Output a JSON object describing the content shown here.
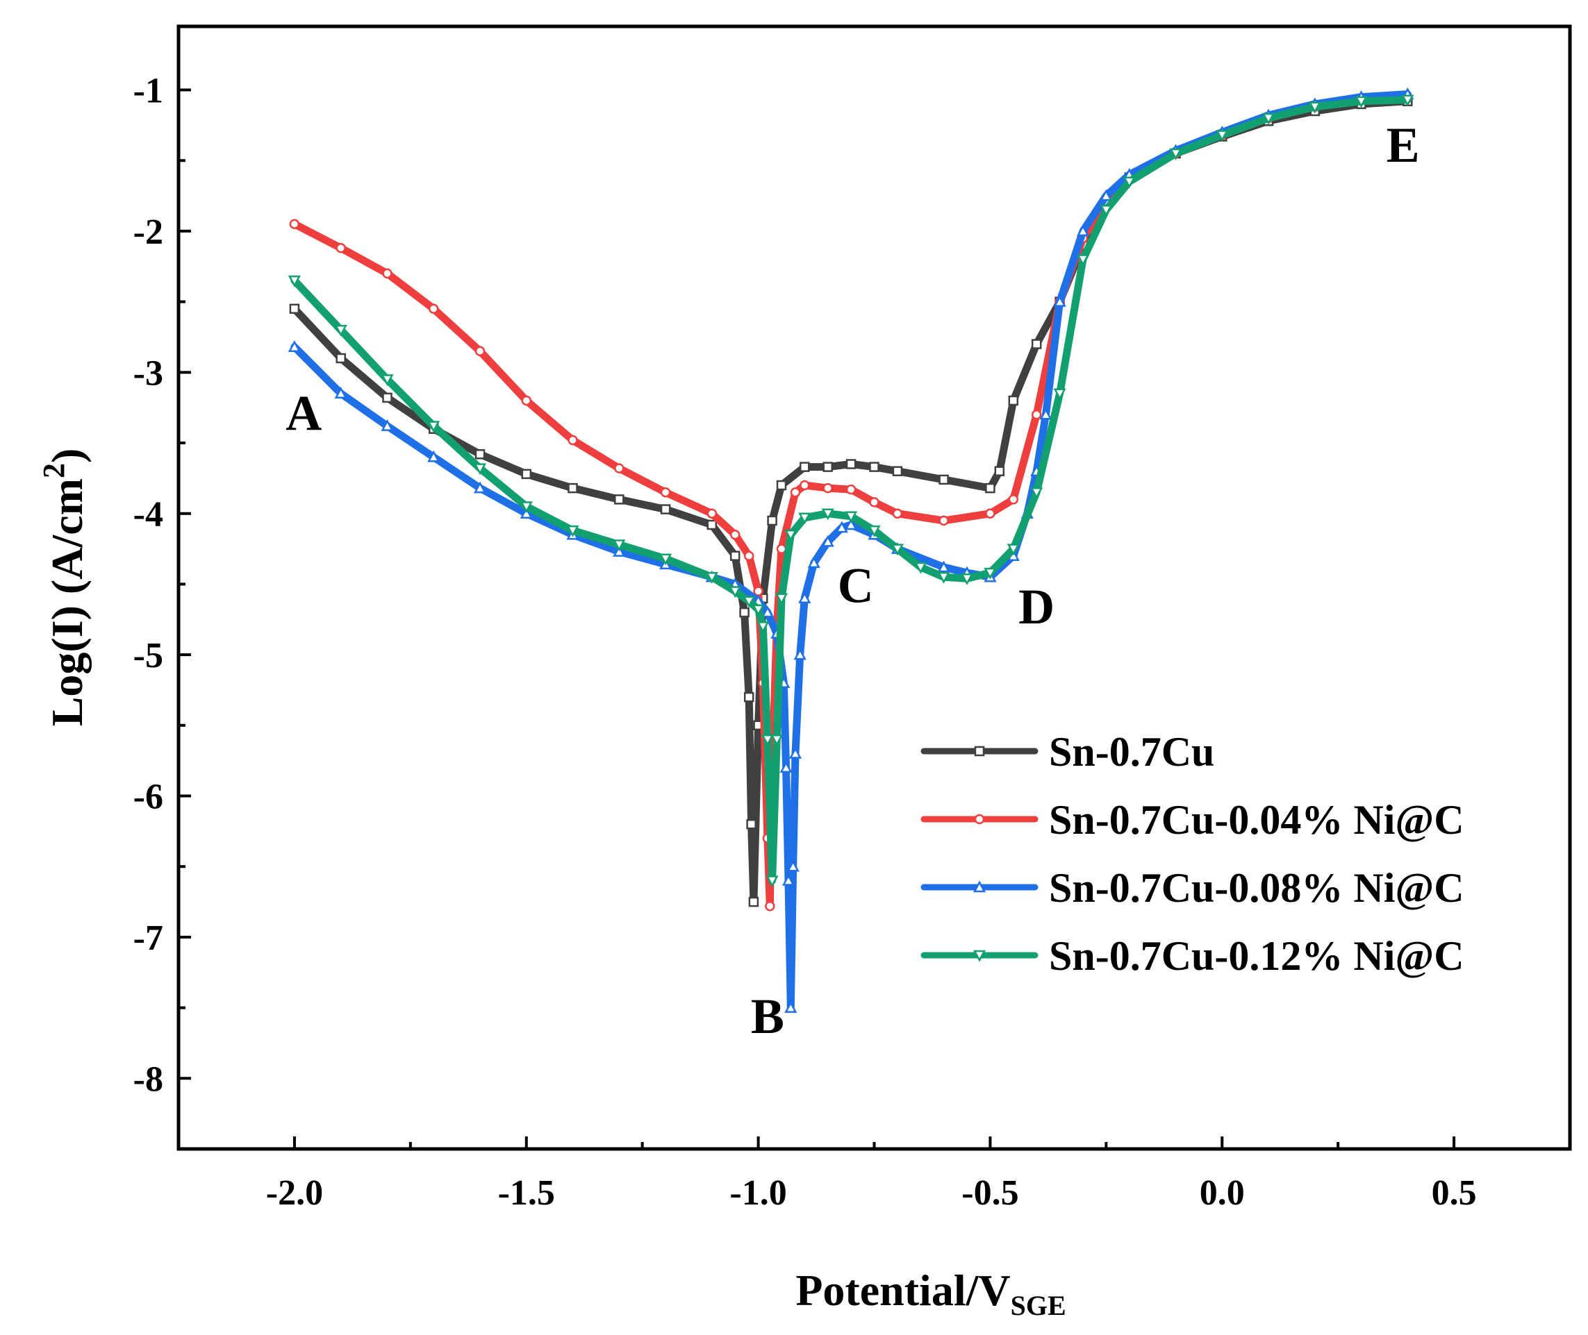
{
  "chart_data": {
    "type": "line",
    "title": "",
    "xlabel": {
      "main": "Potential/V",
      "sub": "SGE"
    },
    "ylabel": {
      "main": "Log(I) (A/cm",
      "sup": "2",
      "close": ")"
    },
    "xlim": [
      -2.25,
      0.75
    ],
    "ylim": [
      -8.5,
      -0.55
    ],
    "xticks": [
      {
        "value": -2.0,
        "label": "-2.0"
      },
      {
        "value": -1.5,
        "label": "-1.5"
      },
      {
        "value": -1.0,
        "label": "-1.0"
      },
      {
        "value": -0.5,
        "label": "-0.5"
      },
      {
        "value": 0.0,
        "label": "0.0"
      },
      {
        "value": 0.5,
        "label": "0.5"
      }
    ],
    "yticks": [
      {
        "value": -1,
        "label": "-1"
      },
      {
        "value": -2,
        "label": "-2"
      },
      {
        "value": -3,
        "label": "-3"
      },
      {
        "value": -4,
        "label": "-4"
      },
      {
        "value": -5,
        "label": "-5"
      },
      {
        "value": -6,
        "label": "-6"
      },
      {
        "value": -7,
        "label": "-7"
      },
      {
        "value": -8,
        "label": "-8"
      }
    ],
    "grid": false,
    "legend_position": "bottom-right",
    "annotations": [
      {
        "text": "A",
        "x": -1.98,
        "y": -3.28
      },
      {
        "text": "B",
        "x": -0.98,
        "y": -7.55
      },
      {
        "text": "C",
        "x": -0.79,
        "y": -4.5
      },
      {
        "text": "D",
        "x": -0.4,
        "y": -4.65
      },
      {
        "text": "E",
        "x": 0.39,
        "y": -1.38
      }
    ],
    "series": [
      {
        "name": "Sn-0.7Cu",
        "color": "#404040",
        "marker": "square",
        "x": [
          -2.0,
          -1.9,
          -1.8,
          -1.7,
          -1.6,
          -1.5,
          -1.4,
          -1.3,
          -1.2,
          -1.1,
          -1.05,
          -1.03,
          -1.02,
          -1.015,
          -1.01,
          -1.0,
          -0.99,
          -0.97,
          -0.95,
          -0.9,
          -0.85,
          -0.8,
          -0.75,
          -0.7,
          -0.6,
          -0.5,
          -0.48,
          -0.45,
          -0.4,
          -0.35,
          -0.3,
          -0.25,
          -0.2,
          -0.1,
          0.0,
          0.1,
          0.2,
          0.3,
          0.4
        ],
        "y": [
          -2.55,
          -2.9,
          -3.18,
          -3.4,
          -3.58,
          -3.72,
          -3.82,
          -3.9,
          -3.97,
          -4.08,
          -4.3,
          -4.7,
          -5.3,
          -6.2,
          -6.75,
          -5.5,
          -4.6,
          -4.05,
          -3.8,
          -3.67,
          -3.67,
          -3.65,
          -3.67,
          -3.7,
          -3.76,
          -3.82,
          -3.7,
          -3.2,
          -2.8,
          -2.5,
          -2.1,
          -1.8,
          -1.62,
          -1.45,
          -1.33,
          -1.22,
          -1.15,
          -1.1,
          -1.08
        ]
      },
      {
        "name": "Sn-0.7Cu-0.04% Ni@C",
        "color": "#ef3e3e",
        "marker": "circle",
        "x": [
          -2.0,
          -1.9,
          -1.8,
          -1.7,
          -1.6,
          -1.5,
          -1.4,
          -1.3,
          -1.2,
          -1.1,
          -1.05,
          -1.02,
          -1.0,
          -0.99,
          -0.98,
          -0.975,
          -0.97,
          -0.96,
          -0.95,
          -0.92,
          -0.9,
          -0.85,
          -0.8,
          -0.75,
          -0.7,
          -0.6,
          -0.5,
          -0.45,
          -0.4,
          -0.35,
          -0.3,
          -0.25,
          -0.2,
          -0.1,
          0.0,
          0.1,
          0.2,
          0.3,
          0.4
        ],
        "y": [
          -1.95,
          -2.12,
          -2.3,
          -2.55,
          -2.85,
          -3.2,
          -3.48,
          -3.68,
          -3.85,
          -4.0,
          -4.15,
          -4.3,
          -4.55,
          -5.2,
          -6.3,
          -6.78,
          -5.8,
          -4.8,
          -4.25,
          -3.85,
          -3.8,
          -3.82,
          -3.83,
          -3.92,
          -4.0,
          -4.05,
          -4.0,
          -3.9,
          -3.3,
          -2.5,
          -2.05,
          -1.8,
          -1.62,
          -1.45,
          -1.32,
          -1.2,
          -1.12,
          -1.07,
          -1.05
        ]
      },
      {
        "name": "Sn-0.7Cu-0.08% Ni@C",
        "color": "#1f6fe6",
        "marker": "triangle-up",
        "x": [
          -2.0,
          -1.9,
          -1.8,
          -1.7,
          -1.6,
          -1.5,
          -1.4,
          -1.3,
          -1.2,
          -1.1,
          -1.05,
          -1.0,
          -0.98,
          -0.96,
          -0.945,
          -0.94,
          -0.935,
          -0.93,
          -0.925,
          -0.92,
          -0.91,
          -0.9,
          -0.88,
          -0.85,
          -0.82,
          -0.8,
          -0.75,
          -0.7,
          -0.6,
          -0.55,
          -0.5,
          -0.45,
          -0.42,
          -0.4,
          -0.38,
          -0.35,
          -0.3,
          -0.25,
          -0.2,
          -0.1,
          0.0,
          0.1,
          0.2,
          0.3,
          0.4
        ],
        "y": [
          -2.82,
          -3.15,
          -3.38,
          -3.6,
          -3.82,
          -4.0,
          -4.15,
          -4.27,
          -4.36,
          -4.45,
          -4.5,
          -4.62,
          -4.7,
          -4.85,
          -5.2,
          -5.8,
          -6.6,
          -7.5,
          -6.5,
          -5.7,
          -5.0,
          -4.6,
          -4.35,
          -4.2,
          -4.1,
          -4.08,
          -4.15,
          -4.25,
          -4.38,
          -4.42,
          -4.45,
          -4.3,
          -4.0,
          -3.7,
          -3.3,
          -2.5,
          -2.0,
          -1.75,
          -1.6,
          -1.43,
          -1.3,
          -1.18,
          -1.1,
          -1.05,
          -1.03
        ]
      },
      {
        "name": "Sn-0.7Cu-0.12% Ni@C",
        "color": "#13a070",
        "marker": "triangle-down",
        "x": [
          -2.0,
          -1.9,
          -1.8,
          -1.7,
          -1.6,
          -1.5,
          -1.4,
          -1.3,
          -1.2,
          -1.1,
          -1.05,
          -1.02,
          -1.0,
          -0.99,
          -0.98,
          -0.97,
          -0.96,
          -0.95,
          -0.93,
          -0.9,
          -0.85,
          -0.8,
          -0.75,
          -0.7,
          -0.65,
          -0.6,
          -0.55,
          -0.5,
          -0.45,
          -0.4,
          -0.35,
          -0.3,
          -0.25,
          -0.2,
          -0.1,
          0.0,
          0.1,
          0.2,
          0.3,
          0.4
        ],
        "y": [
          -2.35,
          -2.7,
          -3.05,
          -3.38,
          -3.68,
          -3.95,
          -4.12,
          -4.22,
          -4.32,
          -4.45,
          -4.55,
          -4.62,
          -4.68,
          -4.8,
          -5.6,
          -6.6,
          -5.6,
          -4.6,
          -4.15,
          -4.03,
          -4.0,
          -4.02,
          -4.12,
          -4.25,
          -4.38,
          -4.45,
          -4.46,
          -4.42,
          -4.25,
          -3.85,
          -3.15,
          -2.2,
          -1.85,
          -1.65,
          -1.45,
          -1.32,
          -1.2,
          -1.12,
          -1.08,
          -1.07
        ]
      }
    ]
  }
}
